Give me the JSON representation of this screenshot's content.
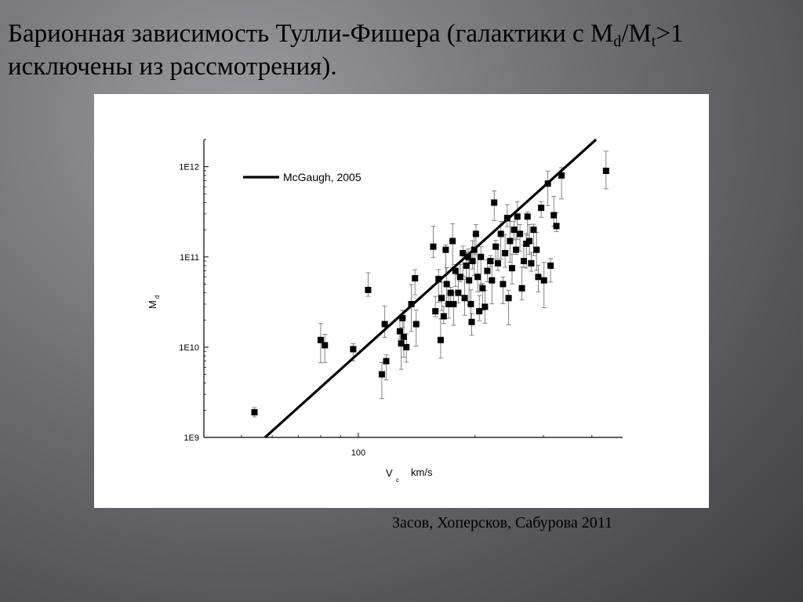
{
  "slide": {
    "title_part1": "Барионная зависимость Тулли-Фишера (галактики с M",
    "title_sub1": "d",
    "title_slash": "/M",
    "title_sub2": "t",
    "title_part2": ">1 исключены из рассмотрения).",
    "caption": "Засов, Хоперсков, Сабурова 2011"
  },
  "chart_data": {
    "type": "scatter",
    "title": "",
    "xlabel": "V",
    "xlabel_sub": "c",
    "xlabel_unit": "km/s",
    "ylabel": "M",
    "ylabel_sub": "d",
    "xscale": "log",
    "yscale": "log",
    "xlim": [
      40,
      480
    ],
    "ylim": [
      1000000000.0,
      2000000000000.0
    ],
    "x_tick_labels": [
      {
        "value": 100,
        "label": "100"
      }
    ],
    "y_tick_labels": [
      {
        "value": 1000000000.0,
        "label": "1E9"
      },
      {
        "value": 10000000000.0,
        "label": "1E10"
      },
      {
        "value": 100000000000.0,
        "label": "1E11"
      },
      {
        "value": 1000000000000.0,
        "label": "1E12"
      }
    ],
    "legend_position": "top-left",
    "series": [
      {
        "name": "McGaugh, 2005",
        "kind": "line",
        "points": [
          [
            57.5,
            1000000000.0
          ],
          [
            410,
            2000000000000.0
          ]
        ]
      },
      {
        "kind": "scatter",
        "points": [
          [
            54,
            1900000000.0
          ],
          [
            80,
            12000000000.0
          ],
          [
            82,
            10500000000.0
          ],
          [
            97,
            9500000000.0
          ],
          [
            106,
            43000000000.0
          ],
          [
            115,
            5000000000.0
          ],
          [
            118,
            7000000000.0
          ],
          [
            117,
            18000000000.0
          ],
          [
            128,
            15000000000.0
          ],
          [
            129,
            11000000000.0
          ],
          [
            131,
            13000000000.0
          ],
          [
            133,
            10000000000.0
          ],
          [
            130,
            21000000000.0
          ],
          [
            137,
            30000000000.0
          ],
          [
            141,
            18000000000.0
          ],
          [
            140,
            58000000000.0
          ],
          [
            156,
            130000000000.0
          ],
          [
            158,
            25000000000.0
          ],
          [
            161,
            57000000000.0
          ],
          [
            163,
            12000000000.0
          ],
          [
            164,
            35000000000.0
          ],
          [
            166,
            22000000000.0
          ],
          [
            168,
            120000000000.0
          ],
          [
            169,
            50000000000.0
          ],
          [
            171,
            30000000000.0
          ],
          [
            173,
            40000000000.0
          ],
          [
            175,
            150000000000.0
          ],
          [
            176,
            30000000000.0
          ],
          [
            178,
            70000000000.0
          ],
          [
            181,
            40000000000.0
          ],
          [
            183,
            60000000000.0
          ],
          [
            186,
            110000000000.0
          ],
          [
            188,
            35000000000.0
          ],
          [
            190,
            80000000000.0
          ],
          [
            192,
            100000000000.0
          ],
          [
            193,
            55000000000.0
          ],
          [
            195,
            30000000000.0
          ],
          [
            196,
            19000000000.0
          ],
          [
            197,
            90000000000.0
          ],
          [
            199,
            120000000000.0
          ],
          [
            201,
            180000000000.0
          ],
          [
            203,
            60000000000.0
          ],
          [
            205,
            25000000000.0
          ],
          [
            207,
            100000000000.0
          ],
          [
            209,
            45000000000.0
          ],
          [
            212,
            28000000000.0
          ],
          [
            215,
            70000000000.0
          ],
          [
            219,
            90000000000.0
          ],
          [
            221,
            55000000000.0
          ],
          [
            224,
            400000000000.0
          ],
          [
            226,
            130000000000.0
          ],
          [
            229,
            85000000000.0
          ],
          [
            233,
            180000000000.0
          ],
          [
            236,
            50000000000.0
          ],
          [
            239,
            110000000000.0
          ],
          [
            242,
            270000000000.0
          ],
          [
            244,
            35000000000.0
          ],
          [
            246,
            150000000000.0
          ],
          [
            249,
            75000000000.0
          ],
          [
            252,
            200000000000.0
          ],
          [
            255,
            120000000000.0
          ],
          [
            257,
            280000000000.0
          ],
          [
            261,
            180000000000.0
          ],
          [
            264,
            45000000000.0
          ],
          [
            267,
            90000000000.0
          ],
          [
            271,
            140000000000.0
          ],
          [
            273,
            280000000000.0
          ],
          [
            276,
            150000000000.0
          ],
          [
            279,
            85000000000.0
          ],
          [
            283,
            200000000000.0
          ],
          [
            288,
            120000000000.0
          ],
          [
            291,
            60000000000.0
          ],
          [
            296,
            350000000000.0
          ],
          [
            301,
            55000000000.0
          ],
          [
            308,
            650000000000.0
          ],
          [
            313,
            80000000000.0
          ],
          [
            319,
            290000000000.0
          ],
          [
            324,
            220000000000.0
          ],
          [
            334,
            800000000000.0
          ],
          [
            435,
            900000000000.0
          ]
        ]
      }
    ]
  }
}
